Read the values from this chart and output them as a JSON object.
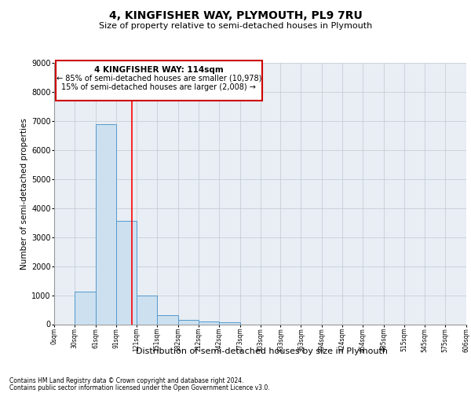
{
  "title": "4, KINGFISHER WAY, PLYMOUTH, PL9 7RU",
  "subtitle": "Size of property relative to semi-detached houses in Plymouth",
  "xlabel": "Distribution of semi-detached houses by size in Plymouth",
  "ylabel": "Number of semi-detached properties",
  "bar_values": [
    0,
    1120,
    6880,
    3560,
    1000,
    320,
    140,
    100,
    80,
    0,
    0,
    0,
    0,
    0,
    0,
    0,
    0,
    0,
    0,
    0
  ],
  "bin_edges": [
    0,
    30,
    61,
    91,
    121,
    151,
    182,
    212,
    242,
    273,
    303,
    333,
    363,
    394,
    424,
    454,
    485,
    515,
    545,
    575,
    606
  ],
  "bin_labels": [
    "0sqm",
    "30sqm",
    "61sqm",
    "91sqm",
    "121sqm",
    "151sqm",
    "182sqm",
    "212sqm",
    "242sqm",
    "273sqm",
    "303sqm",
    "333sqm",
    "363sqm",
    "394sqm",
    "424sqm",
    "454sqm",
    "485sqm",
    "515sqm",
    "545sqm",
    "575sqm",
    "606sqm"
  ],
  "bar_color": "#cce0f0",
  "bar_edge_color": "#5599cc",
  "red_line_x": 114,
  "ylim": [
    0,
    9000
  ],
  "yticks": [
    0,
    1000,
    2000,
    3000,
    4000,
    5000,
    6000,
    7000,
    8000,
    9000
  ],
  "annotation_title": "4 KINGFISHER WAY: 114sqm",
  "annotation_line1": "← 85% of semi-detached houses are smaller (10,978)",
  "annotation_line2": "15% of semi-detached houses are larger (2,008) →",
  "footer1": "Contains HM Land Registry data © Crown copyright and database right 2024.",
  "footer2": "Contains public sector information licensed under the Open Government Licence v3.0.",
  "bg_color": "#e8eef4",
  "grid_color": "#c0c8d0",
  "annotation_box_color": "#ffffff",
  "annotation_border_color": "#cc0000",
  "title_fontsize": 10,
  "subtitle_fontsize": 8,
  "ylabel_fontsize": 7.5,
  "xlabel_fontsize": 8,
  "xtick_fontsize": 5.5,
  "ytick_fontsize": 7,
  "footer_fontsize": 5.5,
  "ann_title_fontsize": 7.5,
  "ann_text_fontsize": 7
}
